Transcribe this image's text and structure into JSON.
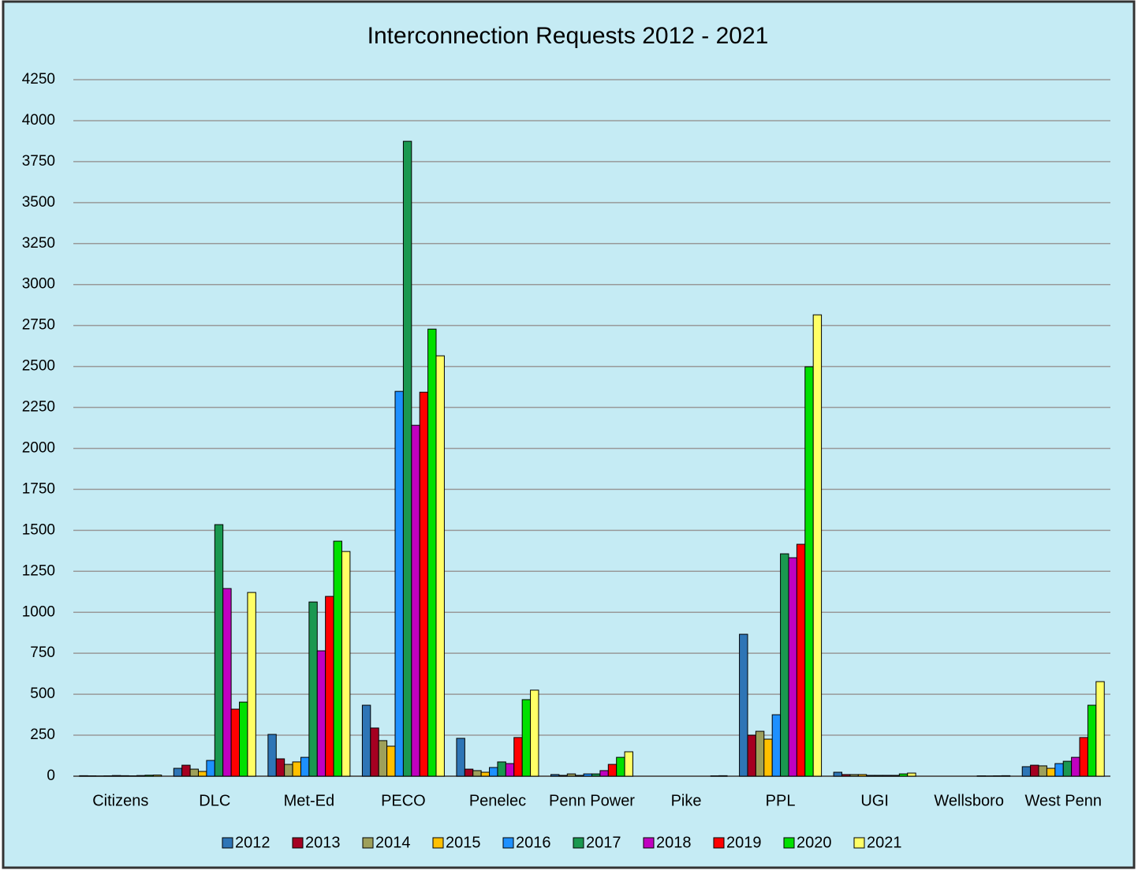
{
  "chart_data": {
    "type": "bar",
    "title": "Interconnection Requests 2012 - 2021",
    "categories": [
      "Citizens",
      "DLC",
      "Met-Ed",
      "PECO",
      "Penelec",
      "Penn Power",
      "Pike",
      "PPL",
      "UGI",
      "Wellsboro",
      "West Penn"
    ],
    "series": [
      {
        "name": "2012",
        "color": "#2e75b6",
        "values": [
          3,
          48,
          255,
          433,
          231,
          10,
          0,
          866,
          24,
          0,
          58
        ]
      },
      {
        "name": "2013",
        "color": "#a50021",
        "values": [
          2,
          67,
          106,
          294,
          43,
          5,
          0,
          250,
          10,
          0,
          67
        ]
      },
      {
        "name": "2014",
        "color": "#9ea05a",
        "values": [
          1,
          43,
          72,
          217,
          34,
          14,
          0,
          274,
          10,
          0,
          63
        ]
      },
      {
        "name": "2015",
        "color": "#ffc000",
        "values": [
          2,
          29,
          87,
          183,
          24,
          5,
          0,
          226,
          10,
          0,
          48
        ]
      },
      {
        "name": "2016",
        "color": "#1e90ff",
        "values": [
          4,
          96,
          115,
          2348,
          53,
          14,
          0,
          375,
          5,
          0,
          77
        ]
      },
      {
        "name": "2017",
        "color": "#1a9850",
        "values": [
          3,
          1535,
          1063,
          3874,
          87,
          14,
          0,
          1357,
          5,
          0,
          91
        ]
      },
      {
        "name": "2018",
        "color": "#c000c0",
        "values": [
          2,
          1145,
          765,
          2141,
          77,
          34,
          0,
          1333,
          5,
          2,
          115
        ]
      },
      {
        "name": "2019",
        "color": "#ff0000",
        "values": [
          4,
          409,
          1097,
          2343,
          236,
          72,
          0,
          1415,
          5,
          1,
          236
        ]
      },
      {
        "name": "2020",
        "color": "#00e000",
        "values": [
          6,
          452,
          1434,
          2728,
          467,
          115,
          2,
          2498,
          14,
          2,
          433
        ]
      },
      {
        "name": "2021",
        "color": "#ffff66",
        "values": [
          7,
          1121,
          1371,
          2565,
          525,
          149,
          3,
          2815,
          19,
          3,
          577
        ]
      }
    ],
    "ylim": [
      0,
      4250
    ],
    "yticks": [
      0,
      250,
      500,
      750,
      1000,
      1250,
      1500,
      1750,
      2000,
      2250,
      2500,
      2750,
      3000,
      3250,
      3500,
      3750,
      4000,
      4250
    ],
    "grid": true,
    "legend": "bottom"
  }
}
